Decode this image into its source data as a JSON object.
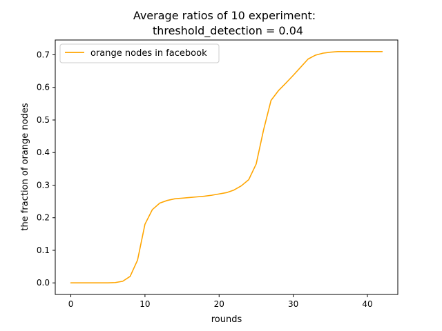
{
  "chart_data": {
    "type": "line",
    "title_lines": [
      "Average ratios of 10 experiment:",
      "threshold_detection = 0.04"
    ],
    "xlabel": "rounds",
    "ylabel": "the fraction of orange nodes",
    "xlim": [
      -2.1,
      44.1
    ],
    "ylim": [
      -0.0355,
      0.7455
    ],
    "x_ticks": [
      0,
      10,
      20,
      30,
      40
    ],
    "y_ticks": [
      0.0,
      0.1,
      0.2,
      0.3,
      0.4,
      0.5,
      0.6,
      0.7
    ],
    "x_tick_labels": [
      "0",
      "10",
      "20",
      "30",
      "40"
    ],
    "y_tick_labels": [
      "0.0",
      "0.1",
      "0.2",
      "0.3",
      "0.4",
      "0.5",
      "0.6",
      "0.7"
    ],
    "grid": false,
    "legend": {
      "placement": "upper-left",
      "entries": [
        "orange nodes in facebook"
      ]
    },
    "series": [
      {
        "name": "orange nodes in facebook",
        "color": "#ffa500",
        "x": [
          0,
          1,
          2,
          3,
          4,
          5,
          6,
          7,
          8,
          9,
          10,
          11,
          12,
          13,
          14,
          15,
          16,
          17,
          18,
          19,
          20,
          21,
          22,
          23,
          24,
          25,
          26,
          27,
          28,
          29,
          30,
          31,
          32,
          33,
          34,
          35,
          36,
          37,
          38,
          39,
          40,
          41,
          42
        ],
        "y": [
          0.0,
          0.0,
          0.0,
          0.0,
          0.0,
          0.0,
          0.001,
          0.005,
          0.02,
          0.07,
          0.18,
          0.225,
          0.245,
          0.253,
          0.258,
          0.26,
          0.262,
          0.264,
          0.266,
          0.269,
          0.273,
          0.277,
          0.285,
          0.298,
          0.317,
          0.365,
          0.47,
          0.56,
          0.59,
          0.613,
          0.637,
          0.662,
          0.687,
          0.699,
          0.705,
          0.708,
          0.71,
          0.71,
          0.71,
          0.71,
          0.71,
          0.71,
          0.71
        ]
      }
    ]
  }
}
